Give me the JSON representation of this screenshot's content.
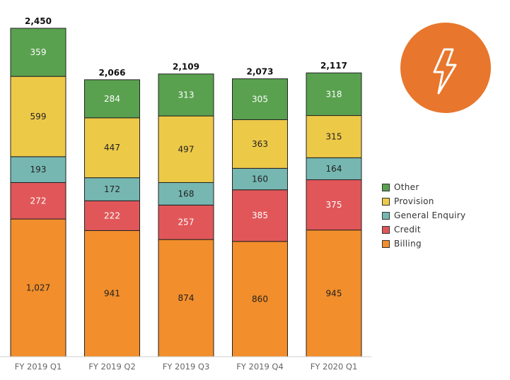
{
  "chart_data": {
    "type": "bar",
    "stacked": true,
    "categories": [
      "FY 2019 Q1",
      "FY 2019 Q2",
      "FY 2019 Q3",
      "FY 2019 Q4",
      "FY 2020 Q1"
    ],
    "series": [
      {
        "name": "Billing",
        "color": "#f28e2b",
        "text_color": "#222222",
        "values": [
          1027,
          941,
          874,
          860,
          945
        ],
        "labels": [
          "1,027",
          "941",
          "874",
          "860",
          "945"
        ]
      },
      {
        "name": "Credit",
        "color": "#e15759",
        "text_color": "#ffffff",
        "values": [
          272,
          222,
          257,
          385,
          375
        ],
        "labels": [
          "272",
          "222",
          "257",
          "385",
          "375"
        ]
      },
      {
        "name": "General Enquiry",
        "color": "#76b7b2",
        "text_color": "#222222",
        "values": [
          193,
          172,
          168,
          160,
          164
        ],
        "labels": [
          "193",
          "172",
          "168",
          "160",
          "164"
        ]
      },
      {
        "name": "Provision",
        "color": "#edc948",
        "text_color": "#222222",
        "values": [
          599,
          447,
          497,
          363,
          315
        ],
        "labels": [
          "599",
          "447",
          "497",
          "363",
          "315"
        ]
      },
      {
        "name": "Other",
        "color": "#59a14f",
        "text_color": "#ffffff",
        "values": [
          359,
          284,
          313,
          305,
          318
        ],
        "labels": [
          "359",
          "284",
          "313",
          "305",
          "318"
        ]
      }
    ],
    "totals": [
      2450,
      2066,
      2109,
      2073,
      2117
    ],
    "total_labels": [
      "2,450",
      "2,066",
      "2,109",
      "2,073",
      "2,117"
    ],
    "ylim": [
      0,
      2450
    ],
    "grid": false,
    "legend_position": "right",
    "legend_order": [
      "Other",
      "Provision",
      "General Enquiry",
      "Credit",
      "Billing"
    ]
  },
  "badge": {
    "icon": "lightning-bolt-icon",
    "color": "#e8762c"
  }
}
